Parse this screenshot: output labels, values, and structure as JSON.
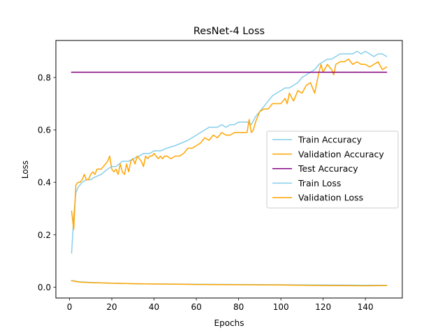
{
  "chart_data": {
    "type": "line",
    "title": "ResNet-4 Loss",
    "xlabel": "Epochs",
    "ylabel": "Loss",
    "xlim": [
      -6.45,
      157.45
    ],
    "ylim": [
      -0.0416,
      0.9412
    ],
    "xticks": [
      0,
      20,
      40,
      60,
      80,
      100,
      120,
      140
    ],
    "yticks": [
      0.0,
      0.2,
      0.4,
      0.6,
      0.8
    ],
    "ytick_labels": [
      "0.0",
      "0.2",
      "0.4",
      "0.6",
      "0.8"
    ],
    "grid": false,
    "legend_position": "center-right",
    "series": [
      {
        "name": "Train Accuracy",
        "color": "#87ceeb",
        "points": [
          [
            1,
            0.13
          ],
          [
            2,
            0.27
          ],
          [
            3,
            0.36
          ],
          [
            4,
            0.38
          ],
          [
            5,
            0.39
          ],
          [
            6,
            0.4
          ],
          [
            8,
            0.41
          ],
          [
            10,
            0.41
          ],
          [
            12,
            0.42
          ],
          [
            15,
            0.43
          ],
          [
            18,
            0.45
          ],
          [
            20,
            0.46
          ],
          [
            22,
            0.46
          ],
          [
            25,
            0.48
          ],
          [
            28,
            0.48
          ],
          [
            30,
            0.49
          ],
          [
            33,
            0.5
          ],
          [
            35,
            0.51
          ],
          [
            38,
            0.51
          ],
          [
            40,
            0.52
          ],
          [
            43,
            0.52
          ],
          [
            46,
            0.53
          ],
          [
            50,
            0.54
          ],
          [
            53,
            0.55
          ],
          [
            56,
            0.56
          ],
          [
            58,
            0.57
          ],
          [
            60,
            0.58
          ],
          [
            62,
            0.59
          ],
          [
            64,
            0.6
          ],
          [
            66,
            0.61
          ],
          [
            68,
            0.61
          ],
          [
            70,
            0.61
          ],
          [
            72,
            0.62
          ],
          [
            74,
            0.61
          ],
          [
            76,
            0.62
          ],
          [
            78,
            0.62
          ],
          [
            80,
            0.63
          ],
          [
            82,
            0.63
          ],
          [
            84,
            0.63
          ],
          [
            86,
            0.62
          ],
          [
            88,
            0.65
          ],
          [
            90,
            0.67
          ],
          [
            92,
            0.69
          ],
          [
            94,
            0.71
          ],
          [
            96,
            0.73
          ],
          [
            98,
            0.74
          ],
          [
            100,
            0.75
          ],
          [
            102,
            0.76
          ],
          [
            104,
            0.76
          ],
          [
            106,
            0.77
          ],
          [
            108,
            0.78
          ],
          [
            110,
            0.8
          ],
          [
            112,
            0.81
          ],
          [
            114,
            0.82
          ],
          [
            116,
            0.83
          ],
          [
            118,
            0.85
          ],
          [
            120,
            0.86
          ],
          [
            122,
            0.87
          ],
          [
            124,
            0.87
          ],
          [
            126,
            0.88
          ],
          [
            128,
            0.89
          ],
          [
            130,
            0.89
          ],
          [
            132,
            0.89
          ],
          [
            134,
            0.89
          ],
          [
            136,
            0.9
          ],
          [
            138,
            0.89
          ],
          [
            140,
            0.9
          ],
          [
            142,
            0.89
          ],
          [
            144,
            0.88
          ],
          [
            146,
            0.89
          ],
          [
            148,
            0.89
          ],
          [
            150,
            0.88
          ]
        ]
      },
      {
        "name": "Validation Accuracy",
        "color": "#ffa500",
        "points": [
          [
            1,
            0.29
          ],
          [
            2,
            0.22
          ],
          [
            3,
            0.39
          ],
          [
            4,
            0.4
          ],
          [
            5,
            0.4
          ],
          [
            6,
            0.41
          ],
          [
            7,
            0.43
          ],
          [
            8,
            0.41
          ],
          [
            9,
            0.41
          ],
          [
            10,
            0.43
          ],
          [
            11,
            0.44
          ],
          [
            12,
            0.43
          ],
          [
            13,
            0.45
          ],
          [
            14,
            0.45
          ],
          [
            15,
            0.45
          ],
          [
            16,
            0.46
          ],
          [
            17,
            0.47
          ],
          [
            18,
            0.48
          ],
          [
            19,
            0.5
          ],
          [
            20,
            0.45
          ],
          [
            21,
            0.44
          ],
          [
            22,
            0.45
          ],
          [
            23,
            0.43
          ],
          [
            24,
            0.47
          ],
          [
            25,
            0.44
          ],
          [
            26,
            0.43
          ],
          [
            27,
            0.47
          ],
          [
            28,
            0.44
          ],
          [
            29,
            0.48
          ],
          [
            30,
            0.49
          ],
          [
            31,
            0.47
          ],
          [
            32,
            0.5
          ],
          [
            33,
            0.49
          ],
          [
            34,
            0.48
          ],
          [
            35,
            0.46
          ],
          [
            36,
            0.5
          ],
          [
            37,
            0.49
          ],
          [
            38,
            0.5
          ],
          [
            39,
            0.5
          ],
          [
            40,
            0.51
          ],
          [
            41,
            0.5
          ],
          [
            42,
            0.49
          ],
          [
            43,
            0.5
          ],
          [
            44,
            0.49
          ],
          [
            45,
            0.5
          ],
          [
            46,
            0.5
          ],
          [
            48,
            0.49
          ],
          [
            50,
            0.5
          ],
          [
            52,
            0.5
          ],
          [
            54,
            0.51
          ],
          [
            56,
            0.53
          ],
          [
            58,
            0.53
          ],
          [
            60,
            0.54
          ],
          [
            62,
            0.55
          ],
          [
            64,
            0.57
          ],
          [
            66,
            0.56
          ],
          [
            68,
            0.58
          ],
          [
            70,
            0.57
          ],
          [
            72,
            0.59
          ],
          [
            74,
            0.58
          ],
          [
            76,
            0.58
          ],
          [
            78,
            0.59
          ],
          [
            80,
            0.59
          ],
          [
            82,
            0.59
          ],
          [
            84,
            0.59
          ],
          [
            85,
            0.64
          ],
          [
            86,
            0.59
          ],
          [
            87,
            0.6
          ],
          [
            88,
            0.63
          ],
          [
            90,
            0.67
          ],
          [
            92,
            0.68
          ],
          [
            94,
            0.68
          ],
          [
            96,
            0.7
          ],
          [
            98,
            0.7
          ],
          [
            100,
            0.7
          ],
          [
            102,
            0.72
          ],
          [
            103,
            0.7
          ],
          [
            104,
            0.74
          ],
          [
            106,
            0.71
          ],
          [
            108,
            0.75
          ],
          [
            110,
            0.74
          ],
          [
            112,
            0.77
          ],
          [
            114,
            0.78
          ],
          [
            116,
            0.74
          ],
          [
            118,
            0.82
          ],
          [
            119,
            0.85
          ],
          [
            120,
            0.82
          ],
          [
            122,
            0.85
          ],
          [
            124,
            0.83
          ],
          [
            125,
            0.81
          ],
          [
            126,
            0.85
          ],
          [
            128,
            0.86
          ],
          [
            130,
            0.86
          ],
          [
            132,
            0.87
          ],
          [
            134,
            0.85
          ],
          [
            136,
            0.86
          ],
          [
            138,
            0.85
          ],
          [
            140,
            0.85
          ],
          [
            142,
            0.84
          ],
          [
            144,
            0.85
          ],
          [
            146,
            0.86
          ],
          [
            148,
            0.83
          ],
          [
            150,
            0.84
          ]
        ]
      },
      {
        "name": "Test Accuracy",
        "color": "#800080",
        "points": [
          [
            1,
            0.82
          ],
          [
            150,
            0.82
          ]
        ]
      },
      {
        "name": "Train Loss",
        "color": "#87ceeb",
        "points": [
          [
            1,
            0.025
          ],
          [
            5,
            0.02
          ],
          [
            10,
            0.018
          ],
          [
            20,
            0.015
          ],
          [
            30,
            0.013
          ],
          [
            40,
            0.012
          ],
          [
            60,
            0.011
          ],
          [
            80,
            0.01
          ],
          [
            100,
            0.009
          ],
          [
            120,
            0.008
          ],
          [
            140,
            0.007
          ],
          [
            150,
            0.007
          ]
        ]
      },
      {
        "name": "Validation Loss",
        "color": "#ffa500",
        "points": [
          [
            1,
            0.024
          ],
          [
            5,
            0.019
          ],
          [
            10,
            0.017
          ],
          [
            20,
            0.015
          ],
          [
            30,
            0.013
          ],
          [
            40,
            0.012
          ],
          [
            60,
            0.01
          ],
          [
            80,
            0.009
          ],
          [
            100,
            0.008
          ],
          [
            120,
            0.006
          ],
          [
            140,
            0.005
          ],
          [
            150,
            0.006
          ]
        ]
      }
    ]
  }
}
